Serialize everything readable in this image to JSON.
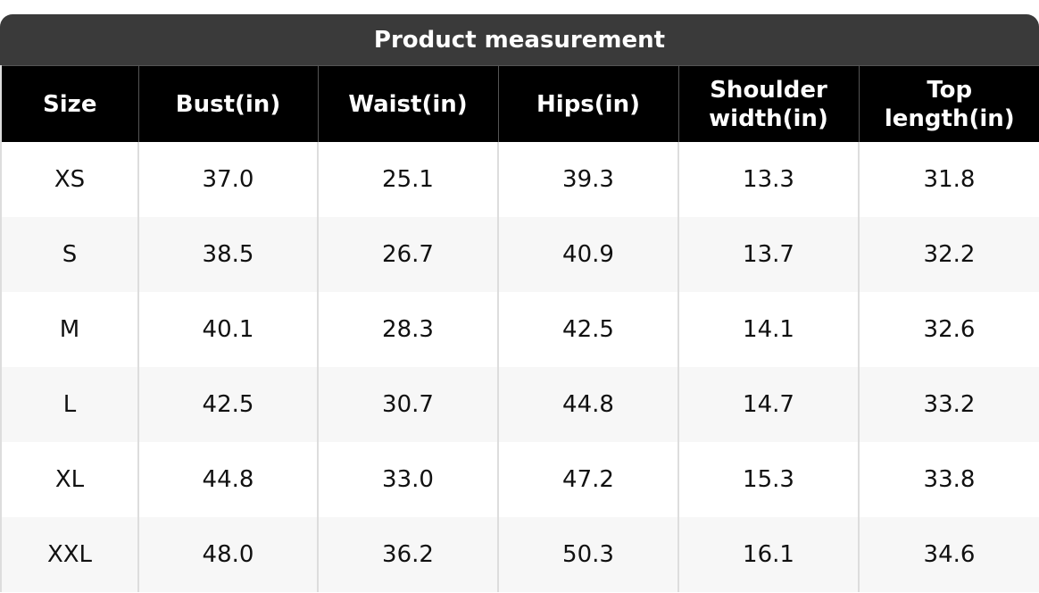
{
  "title": "Product measurement",
  "table": {
    "header": [
      "Size",
      "Bust(in)",
      "Waist(in)",
      "Hips(in)",
      "Shoulder width(in)",
      "Top length(in)"
    ],
    "rows": [
      [
        "XS",
        "37.0",
        "25.1",
        "39.3",
        "13.3",
        "31.8"
      ],
      [
        "S",
        "38.5",
        "26.7",
        "40.9",
        "13.7",
        "32.2"
      ],
      [
        "M",
        "40.1",
        "28.3",
        "42.5",
        "14.1",
        "32.6"
      ],
      [
        "L",
        "42.5",
        "30.7",
        "44.8",
        "14.7",
        "33.2"
      ],
      [
        "XL",
        "44.8",
        "33.0",
        "47.2",
        "15.3",
        "33.8"
      ],
      [
        "XXL",
        "48.0",
        "36.2",
        "50.3",
        "16.1",
        "34.6"
      ]
    ]
  }
}
